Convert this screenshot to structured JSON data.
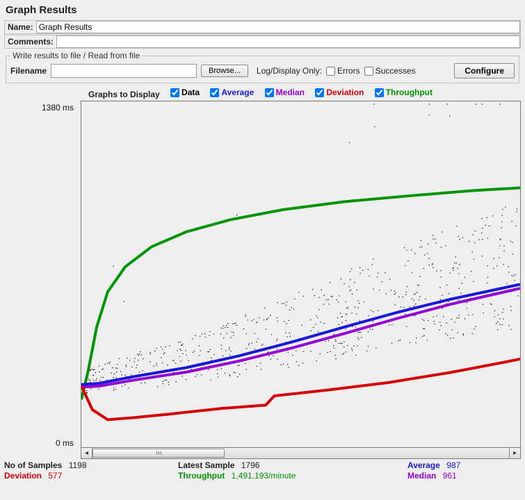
{
  "title": "Graph Results",
  "name_label": "Name:",
  "name_value": "Graph Results",
  "comments_label": "Comments:",
  "comments_value": "",
  "fieldset_legend": "Write results to file / Read from file",
  "filename_label": "Filename",
  "filename_value": "",
  "browse_label": "Browse...",
  "logdisplay_label": "Log/Display Only:",
  "errors_label": "Errors",
  "errors_checked": false,
  "successes_label": "Successes",
  "successes_checked": false,
  "configure_label": "Configure",
  "graphs_header": "Graphs to Display",
  "series": {
    "data": {
      "label": "Data",
      "color": "#000000",
      "checked": true
    },
    "average": {
      "label": "Average",
      "color": "#1818d6",
      "checked": true
    },
    "median": {
      "label": "Median",
      "color": "#9400d3",
      "checked": true
    },
    "deviation": {
      "label": "Deviation",
      "color": "#d60000",
      "checked": true
    },
    "throughput": {
      "label": "Throughput",
      "color": "#009400",
      "checked": true
    }
  },
  "chart": {
    "ymax_label": "1380  ms",
    "ymin_label": "0  ms",
    "background": "#eeeeee",
    "width_ratio": 1.0,
    "ymax": 1380,
    "ymin": 0,
    "line_width": 2,
    "scatter_size": 1.1,
    "average_curve": [
      [
        0,
        250
      ],
      [
        40,
        255
      ],
      [
        120,
        282
      ],
      [
        240,
        318
      ],
      [
        360,
        365
      ],
      [
        480,
        420
      ],
      [
        600,
        480
      ],
      [
        720,
        538
      ],
      [
        840,
        590
      ],
      [
        960,
        635
      ],
      [
        1000,
        650
      ]
    ],
    "median_curve": [
      [
        0,
        240
      ],
      [
        40,
        244
      ],
      [
        120,
        268
      ],
      [
        240,
        300
      ],
      [
        360,
        344
      ],
      [
        480,
        396
      ],
      [
        600,
        454
      ],
      [
        720,
        514
      ],
      [
        840,
        570
      ],
      [
        960,
        618
      ],
      [
        1000,
        634
      ]
    ],
    "deviation_curve": [
      [
        0,
        245
      ],
      [
        25,
        150
      ],
      [
        60,
        110
      ],
      [
        120,
        118
      ],
      [
        200,
        132
      ],
      [
        320,
        155
      ],
      [
        420,
        168
      ],
      [
        440,
        205
      ],
      [
        560,
        228
      ],
      [
        700,
        258
      ],
      [
        840,
        298
      ],
      [
        960,
        338
      ],
      [
        1000,
        352
      ]
    ],
    "throughput_curve": [
      [
        0,
        190
      ],
      [
        15,
        300
      ],
      [
        35,
        480
      ],
      [
        60,
        620
      ],
      [
        100,
        720
      ],
      [
        160,
        800
      ],
      [
        240,
        860
      ],
      [
        340,
        908
      ],
      [
        460,
        948
      ],
      [
        600,
        980
      ],
      [
        760,
        1005
      ],
      [
        900,
        1025
      ],
      [
        1000,
        1035
      ]
    ]
  },
  "stats": {
    "no_samples_label": "No of Samples",
    "no_samples": "1198",
    "latest_sample_label": "Latest Sample",
    "latest_sample": "1796",
    "average_label": "Average",
    "average": "987",
    "deviation_label": "Deviation",
    "deviation": "577",
    "throughput_label": "Throughput",
    "throughput": "1,491.193/minute",
    "median_label": "Median",
    "median": "961"
  }
}
